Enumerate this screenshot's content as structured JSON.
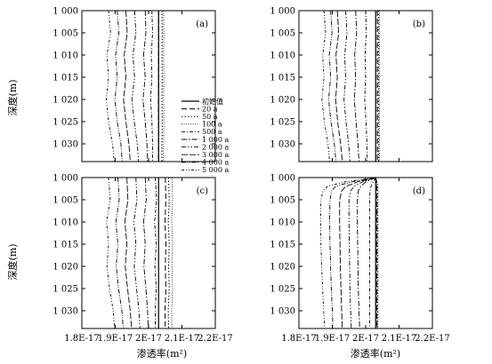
{
  "chart_data": {
    "type": "line",
    "x_tick_labels": [
      "1.8E-17",
      "1.9E-17",
      "2E-17",
      "2.1E-17",
      "2.2E-17"
    ],
    "y_tick_labels": [
      "1 000",
      "1 005",
      "1 010",
      "1 015",
      "1 020",
      "1 025",
      "1 030"
    ],
    "x_ticks": [
      1.8e-17,
      1.9e-17,
      2e-17,
      2.1e-17,
      2.2e-17
    ],
    "y_ticks": [
      1000,
      1005,
      1010,
      1015,
      1020,
      1025,
      1030
    ],
    "xlim": [
      1.8e-17,
      2.2e-17
    ],
    "ylim": [
      1034,
      1000
    ],
    "ylabel": "深度(m)",
    "xlabel": "渗透率(m²)",
    "legend_title": "初始值",
    "legend_location": "inside panel (a), center-right",
    "series_names": [
      "20 a",
      "50 a",
      "100 a",
      "500 a",
      "1 000 a",
      "2 000 a",
      "3 000 a",
      "4 000 a",
      "5 000 a"
    ],
    "panels": [
      {
        "label": "(a)",
        "initial": 2.03e-17,
        "depths": [
          1000,
          1005,
          1010,
          1015,
          1020,
          1025,
          1030,
          1034
        ],
        "series": [
          {
            "name": "20 a",
            "values": [
              2.03e-17,
              2.03e-17,
              2.03e-17,
              2.03e-17,
              2.03e-17,
              2.03e-17,
              2.03e-17,
              2.03e-17
            ]
          },
          {
            "name": "50 a",
            "values": [
              2.04e-17,
              2.041e-17,
              2.04e-17,
              2.041e-17,
              2.04e-17,
              2.041e-17,
              2.04e-17,
              2.04e-17
            ]
          },
          {
            "name": "100 a",
            "values": [
              2.045e-17,
              2.046e-17,
              2.045e-17,
              2.046e-17,
              2.045e-17,
              2.046e-17,
              2.045e-17,
              2.045e-17
            ]
          },
          {
            "name": "500 a",
            "values": [
              2.01e-17,
              2.012e-17,
              2.008e-17,
              2.01e-17,
              2.006e-17,
              2.01e-17,
              2.012e-17,
              2.012e-17
            ]
          },
          {
            "name": "1 000 a",
            "values": [
              1.99e-17,
              1.992e-17,
              1.985e-17,
              1.99e-17,
              1.983e-17,
              1.99e-17,
              1.995e-17,
              1.997e-17
            ]
          },
          {
            "name": "2 000 a",
            "values": [
              1.958e-17,
              1.962e-17,
              1.953e-17,
              1.958e-17,
              1.95e-17,
              1.957e-17,
              1.966e-17,
              1.97e-17
            ]
          },
          {
            "name": "3 000 a",
            "values": [
              1.932e-17,
              1.936e-17,
              1.927e-17,
              1.932e-17,
              1.925e-17,
              1.932e-17,
              1.941e-17,
              1.945e-17
            ]
          },
          {
            "name": "4 000 a",
            "values": [
              1.906e-17,
              1.911e-17,
              1.901e-17,
              1.906e-17,
              1.899e-17,
              1.906e-17,
              1.917e-17,
              1.921e-17
            ]
          },
          {
            "name": "5 000 a",
            "values": [
              1.88e-17,
              1.886e-17,
              1.875e-17,
              1.88e-17,
              1.873e-17,
              1.88e-17,
              1.892e-17,
              1.897e-17
            ]
          }
        ]
      },
      {
        "label": "(b)",
        "initial": 2.03e-17,
        "depths": [
          1000,
          1005,
          1010,
          1015,
          1020,
          1025,
          1030,
          1034
        ],
        "series": [
          {
            "name": "20 a",
            "values": [
              2.035e-17,
              2.035e-17,
              2.035e-17,
              2.035e-17,
              2.035e-17,
              2.035e-17,
              2.035e-17,
              2.035e-17
            ]
          },
          {
            "name": "50 a",
            "values": [
              2.038e-17,
              2.038e-17,
              2.038e-17,
              2.038e-17,
              2.038e-17,
              2.038e-17,
              2.038e-17,
              2.038e-17
            ]
          },
          {
            "name": "100 a",
            "values": [
              2.041e-17,
              2.041e-17,
              2.041e-17,
              2.041e-17,
              2.041e-17,
              2.041e-17,
              2.041e-17,
              2.041e-17
            ]
          },
          {
            "name": "500 a",
            "values": [
              2e-17,
              2.002e-17,
              1.998e-17,
              2e-17,
              1.997e-17,
              2.001e-17,
              2.004e-17,
              2.005e-17
            ]
          },
          {
            "name": "1 000 a",
            "values": [
              1.97e-17,
              1.973e-17,
              1.967e-17,
              1.97e-17,
              1.966e-17,
              1.971e-17,
              1.977e-17,
              1.98e-17
            ]
          },
          {
            "name": "2 000 a",
            "values": [
              1.94e-17,
              1.944e-17,
              1.937e-17,
              1.94e-17,
              1.935e-17,
              1.941e-17,
              1.949e-17,
              1.953e-17
            ]
          },
          {
            "name": "3 000 a",
            "values": [
              1.915e-17,
              1.919e-17,
              1.911e-17,
              1.915e-17,
              1.91e-17,
              1.916e-17,
              1.925e-17,
              1.93e-17
            ]
          },
          {
            "name": "4 000 a",
            "values": [
              1.895e-17,
              1.899e-17,
              1.891e-17,
              1.895e-17,
              1.889e-17,
              1.896e-17,
              1.906e-17,
              1.911e-17
            ]
          },
          {
            "name": "5 000 a",
            "values": [
              1.875e-17,
              1.88e-17,
              1.871e-17,
              1.875e-17,
              1.869e-17,
              1.876e-17,
              1.887e-17,
              1.892e-17
            ]
          }
        ]
      },
      {
        "label": "(c)",
        "initial": 2.03e-17,
        "depths": [
          1000,
          1005,
          1010,
          1015,
          1020,
          1025,
          1030,
          1034
        ],
        "series": [
          {
            "name": "20 a",
            "values": [
              2.05e-17,
              2.052e-17,
              2.049e-17,
              2.052e-17,
              2.05e-17,
              2.052e-17,
              2.049e-17,
              2.05e-17
            ]
          },
          {
            "name": "50 a",
            "values": [
              2.06e-17,
              2.062e-17,
              2.059e-17,
              2.062e-17,
              2.06e-17,
              2.062e-17,
              2.059e-17,
              2.06e-17
            ]
          },
          {
            "name": "100 a",
            "values": [
              2.07e-17,
              2.072e-17,
              2.069e-17,
              2.072e-17,
              2.07e-17,
              2.072e-17,
              2.069e-17,
              2.07e-17
            ]
          },
          {
            "name": "500 a",
            "values": [
              2.02e-17,
              2.024e-17,
              2.018e-17,
              2.023e-17,
              2.019e-17,
              2.023e-17,
              2.02e-17,
              2.02e-17
            ]
          },
          {
            "name": "1 000 a",
            "values": [
              1.99e-17,
              1.993e-17,
              1.985e-17,
              1.99e-17,
              1.986e-17,
              1.992e-17,
              1.997e-17,
              1.999e-17
            ]
          },
          {
            "name": "2 000 a",
            "values": [
              1.962e-17,
              1.965e-17,
              1.956e-17,
              1.962e-17,
              1.957e-17,
              1.964e-17,
              1.971e-17,
              1.974e-17
            ]
          },
          {
            "name": "3 000 a",
            "values": [
              1.935e-17,
              1.938e-17,
              1.929e-17,
              1.935e-17,
              1.93e-17,
              1.937e-17,
              1.945e-17,
              1.949e-17
            ]
          },
          {
            "name": "4 000 a",
            "values": [
              1.908e-17,
              1.912e-17,
              1.902e-17,
              1.908e-17,
              1.903e-17,
              1.91e-17,
              1.92e-17,
              1.924e-17
            ]
          },
          {
            "name": "5 000 a",
            "values": [
              1.88e-17,
              1.885e-17,
              1.874e-17,
              1.88e-17,
              1.875e-17,
              1.883e-17,
              1.894e-17,
              1.898e-17
            ]
          }
        ]
      },
      {
        "label": "(d)",
        "initial": 2.03e-17,
        "depths": [
          1000,
          1001,
          1002,
          1003,
          1005,
          1010,
          1015,
          1020,
          1025,
          1030,
          1034
        ],
        "series": [
          {
            "name": "20 a",
            "values": [
              2.03e-17,
              2.032e-17,
              2.033e-17,
              2.033e-17,
              2.033e-17,
              2.033e-17,
              2.033e-17,
              2.033e-17,
              2.033e-17,
              2.033e-17,
              2.033e-17
            ]
          },
          {
            "name": "50 a",
            "values": [
              2.03e-17,
              2.033e-17,
              2.035e-17,
              2.035e-17,
              2.035e-17,
              2.035e-17,
              2.035e-17,
              2.035e-17,
              2.035e-17,
              2.035e-17,
              2.035e-17
            ]
          },
          {
            "name": "100 a",
            "values": [
              2.03e-17,
              2.034e-17,
              2.037e-17,
              2.037e-17,
              2.037e-17,
              2.037e-17,
              2.037e-17,
              2.037e-17,
              2.037e-17,
              2.037e-17,
              2.037e-17
            ]
          },
          {
            "name": "500 a",
            "values": [
              2.03e-17,
              2.022e-17,
              2.016e-17,
              2.013e-17,
              2.012e-17,
              2.012e-17,
              2.012e-17,
              2.012e-17,
              2.012e-17,
              2.012e-17,
              2.012e-17
            ]
          },
          {
            "name": "1 000 a",
            "values": [
              2.03e-17,
              2e-17,
              1.985e-17,
              1.978e-17,
              1.975e-17,
              1.975e-17,
              1.976e-17,
              1.977e-17,
              1.978e-17,
              1.98e-17,
              1.982e-17
            ]
          },
          {
            "name": "2 000 a",
            "values": [
              2.03e-17,
              1.99e-17,
              1.965e-17,
              1.955e-17,
              1.95e-17,
              1.95e-17,
              1.951e-17,
              1.952e-17,
              1.953e-17,
              1.955e-17,
              1.957e-17
            ]
          },
          {
            "name": "3 000 a",
            "values": [
              2.03e-17,
              1.975e-17,
              1.94e-17,
              1.928e-17,
              1.922e-17,
              1.922e-17,
              1.923e-17,
              1.924e-17,
              1.926e-17,
              1.928e-17,
              1.93e-17
            ]
          },
          {
            "name": "4 000 a",
            "values": [
              2.03e-17,
              1.955e-17,
              1.91e-17,
              1.898e-17,
              1.893e-17,
              1.892e-17,
              1.893e-17,
              1.895e-17,
              1.897e-17,
              1.9e-17,
              1.902e-17
            ]
          },
          {
            "name": "5 000 a",
            "values": [
              2.03e-17,
              1.935e-17,
              1.885e-17,
              1.872e-17,
              1.866e-17,
              1.865e-17,
              1.866e-17,
              1.868e-17,
              1.871e-17,
              1.874e-17,
              1.877e-17
            ]
          }
        ]
      }
    ]
  }
}
